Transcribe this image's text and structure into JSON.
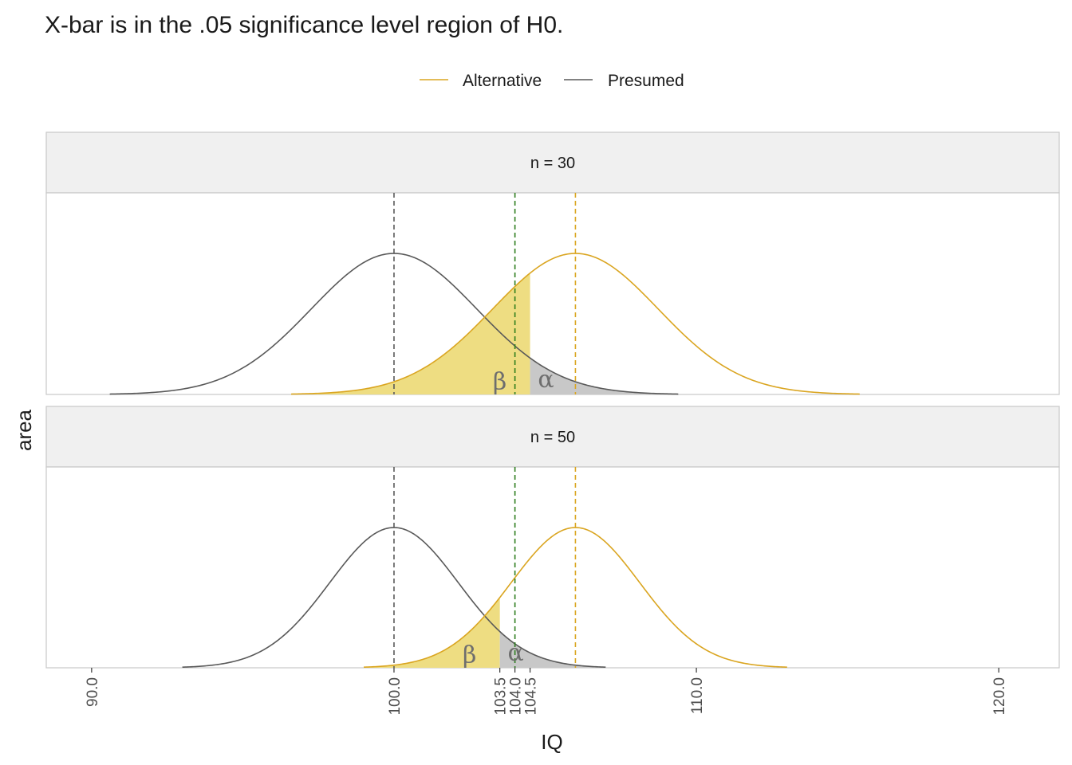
{
  "chart_data": {
    "type": "area",
    "title": "X-bar is in the .05 significance level region of H0.",
    "xlabel": "IQ",
    "ylabel": "area",
    "xlim": [
      88.5,
      122.0
    ],
    "x_ticks": [
      90.0,
      100.0,
      103.5,
      104.0,
      104.5,
      110.0,
      120.0
    ],
    "x_tick_labels": [
      "90.0",
      "100.0",
      "103.5",
      "104.0",
      "104.5",
      "110.0",
      "120.0"
    ],
    "legend": {
      "position": "top",
      "entries": [
        {
          "name": "Alternative",
          "color": "#daa520"
        },
        {
          "name": "Presumed",
          "color": "#595959"
        }
      ]
    },
    "colors": {
      "beta_fill": "#eedd82",
      "alpha_fill": "#c8c8c8",
      "xbar_line": "#2e7d1e"
    },
    "region_labels": {
      "beta": "β",
      "alpha": "α"
    },
    "sample_mean": 104.0,
    "panels": [
      {
        "strip_label": "n = 30",
        "n": 30,
        "presumed_mean": 100.0,
        "alternative_mean": 106.0,
        "critical_value": 104.5,
        "curve_range": {
          "presumed": [
            90.6,
            109.4
          ],
          "alternative": [
            96.6,
            115.4
          ]
        }
      },
      {
        "strip_label": "n = 50",
        "n": 50,
        "presumed_mean": 100.0,
        "alternative_mean": 106.0,
        "critical_value": 103.5,
        "curve_range": {
          "presumed": [
            93.0,
            107.0
          ],
          "alternative": [
            99.0,
            113.0
          ]
        }
      }
    ]
  }
}
